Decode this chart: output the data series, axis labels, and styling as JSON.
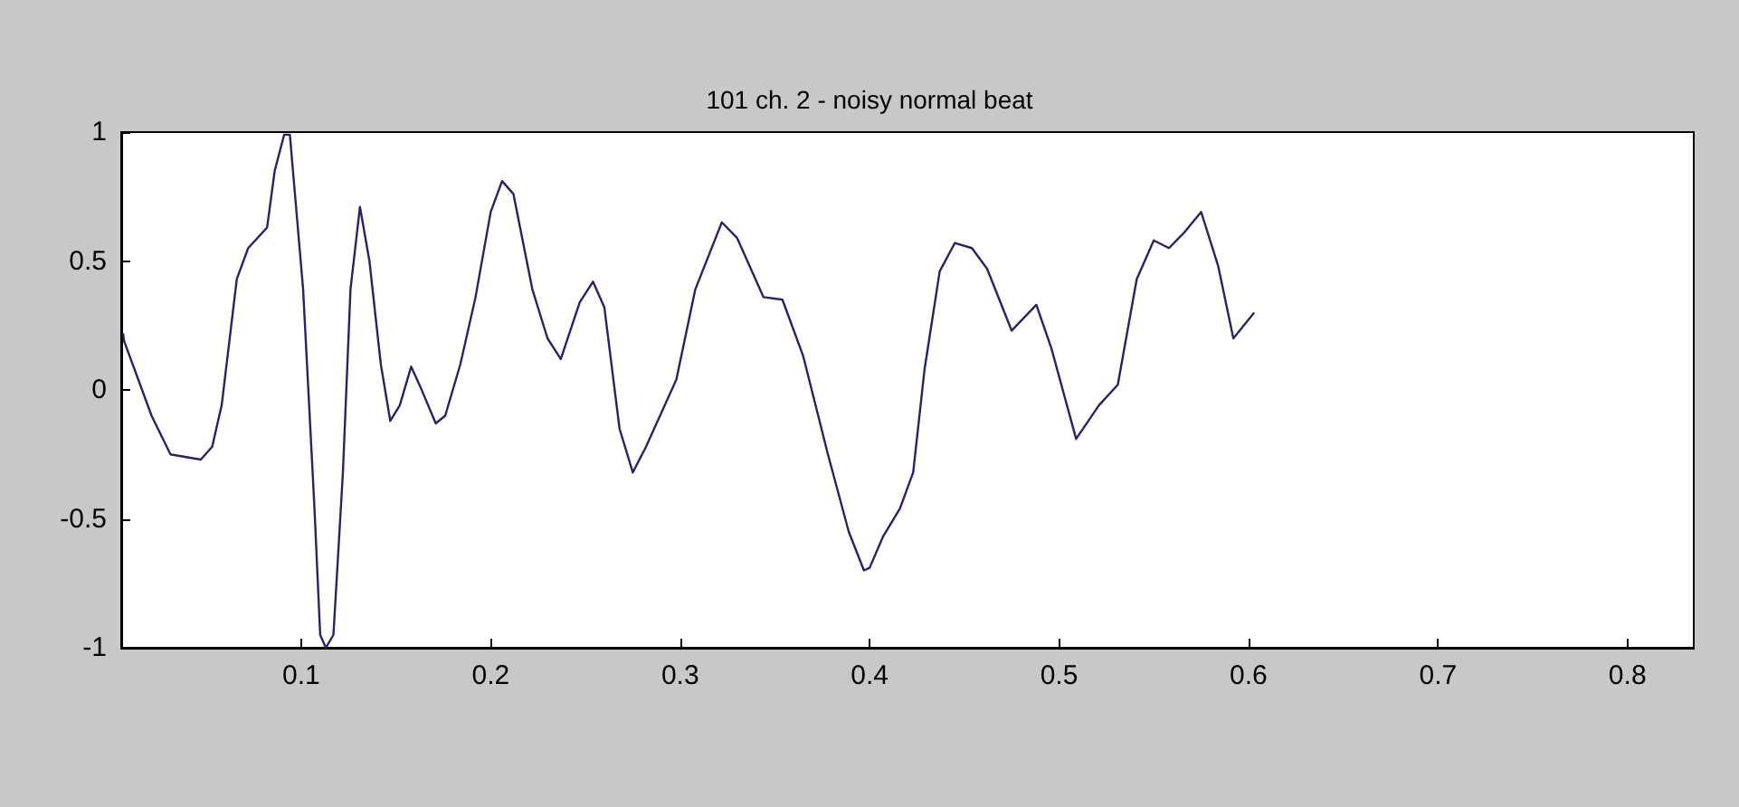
{
  "chart_data": {
    "type": "line",
    "title": "101 ch. 2 - noisy normal beat",
    "x": [
      0.006,
      0.0065,
      0.021,
      0.031,
      0.047,
      0.053,
      0.058,
      0.066,
      0.072,
      0.082,
      0.086,
      0.091,
      0.094,
      0.101,
      0.107,
      0.11,
      0.113,
      0.117,
      0.122,
      0.126,
      0.131,
      0.136,
      0.142,
      0.147,
      0.152,
      0.158,
      0.163,
      0.171,
      0.176,
      0.184,
      0.192,
      0.2,
      0.206,
      0.212,
      0.222,
      0.23,
      0.237,
      0.247,
      0.254,
      0.26,
      0.268,
      0.275,
      0.282,
      0.298,
      0.308,
      0.322,
      0.33,
      0.344,
      0.354,
      0.365,
      0.378,
      0.389,
      0.397,
      0.4,
      0.407,
      0.416,
      0.423,
      0.429,
      0.437,
      0.445,
      0.454,
      0.462,
      0.475,
      0.488,
      0.496,
      0.509,
      0.521,
      0.531,
      0.541,
      0.55,
      0.558,
      0.566,
      0.575,
      0.584,
      0.592,
      0.603
    ],
    "series": [
      {
        "color": "#24246c",
        "values": [
          0.22,
          0.19,
          -0.1,
          -0.25,
          -0.27,
          -0.22,
          -0.06,
          0.43,
          0.55,
          0.63,
          0.85,
          0.99,
          0.99,
          0.39,
          -0.46,
          -0.95,
          -1,
          -0.95,
          -0.32,
          0.39,
          0.71,
          0.5,
          0.1,
          -0.12,
          -0.06,
          0.09,
          0.01,
          -0.13,
          -0.1,
          0.1,
          0.36,
          0.69,
          0.81,
          0.76,
          0.39,
          0.2,
          0.12,
          0.34,
          0.42,
          0.32,
          -0.15,
          -0.32,
          -0.22,
          0.04,
          0.39,
          0.65,
          0.59,
          0.36,
          0.35,
          0.13,
          -0.25,
          -0.55,
          -0.7,
          -0.69,
          -0.57,
          -0.46,
          -0.32,
          0.08,
          0.46,
          0.57,
          0.55,
          0.47,
          0.23,
          0.33,
          0.16,
          -0.19,
          -0.06,
          0.02,
          0.43,
          0.58,
          0.55,
          0.61,
          0.69,
          0.48,
          0.2,
          0.3
        ]
      }
    ],
    "xlim": [
      0.005,
      0.835
    ],
    "xticks": [
      0.1,
      0.2,
      0.3,
      0.4,
      0.5,
      0.6,
      0.7,
      0.8
    ],
    "ylim": [
      -1,
      1
    ],
    "yticks": [
      -1,
      -0.5,
      0,
      0.5,
      1
    ]
  }
}
